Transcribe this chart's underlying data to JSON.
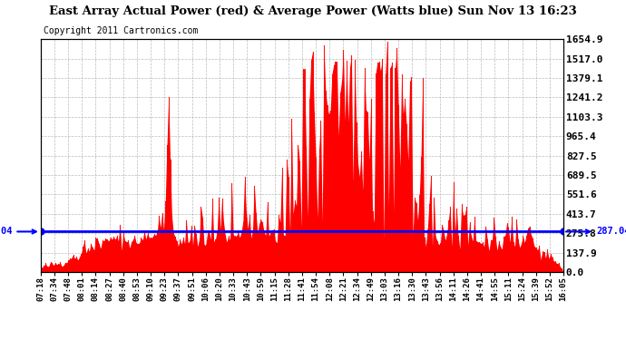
{
  "title": "East Array Actual Power (red) & Average Power (Watts blue) Sun Nov 13 16:23",
  "copyright": "Copyright 2011 Cartronics.com",
  "avg_power": 287.04,
  "ymax": 1654.9,
  "ymin": 0.0,
  "ytick_values": [
    0.0,
    137.9,
    275.8,
    413.7,
    551.6,
    689.5,
    827.5,
    965.4,
    1103.3,
    1241.2,
    1379.1,
    1517.0,
    1654.9
  ],
  "xtick_labels": [
    "07:18",
    "07:34",
    "07:48",
    "08:01",
    "08:14",
    "08:27",
    "08:40",
    "08:53",
    "09:10",
    "09:23",
    "09:37",
    "09:51",
    "10:06",
    "10:20",
    "10:33",
    "10:43",
    "10:59",
    "11:15",
    "11:28",
    "11:41",
    "11:54",
    "12:08",
    "12:21",
    "12:34",
    "12:49",
    "13:03",
    "13:16",
    "13:30",
    "13:43",
    "13:56",
    "14:11",
    "14:26",
    "14:41",
    "14:55",
    "15:11",
    "15:24",
    "15:39",
    "15:52",
    "16:05"
  ],
  "bg_color": "#ffffff",
  "fill_color": "#ff0000",
  "avg_line_color": "#0000ff",
  "grid_color": "#aaaaaa"
}
